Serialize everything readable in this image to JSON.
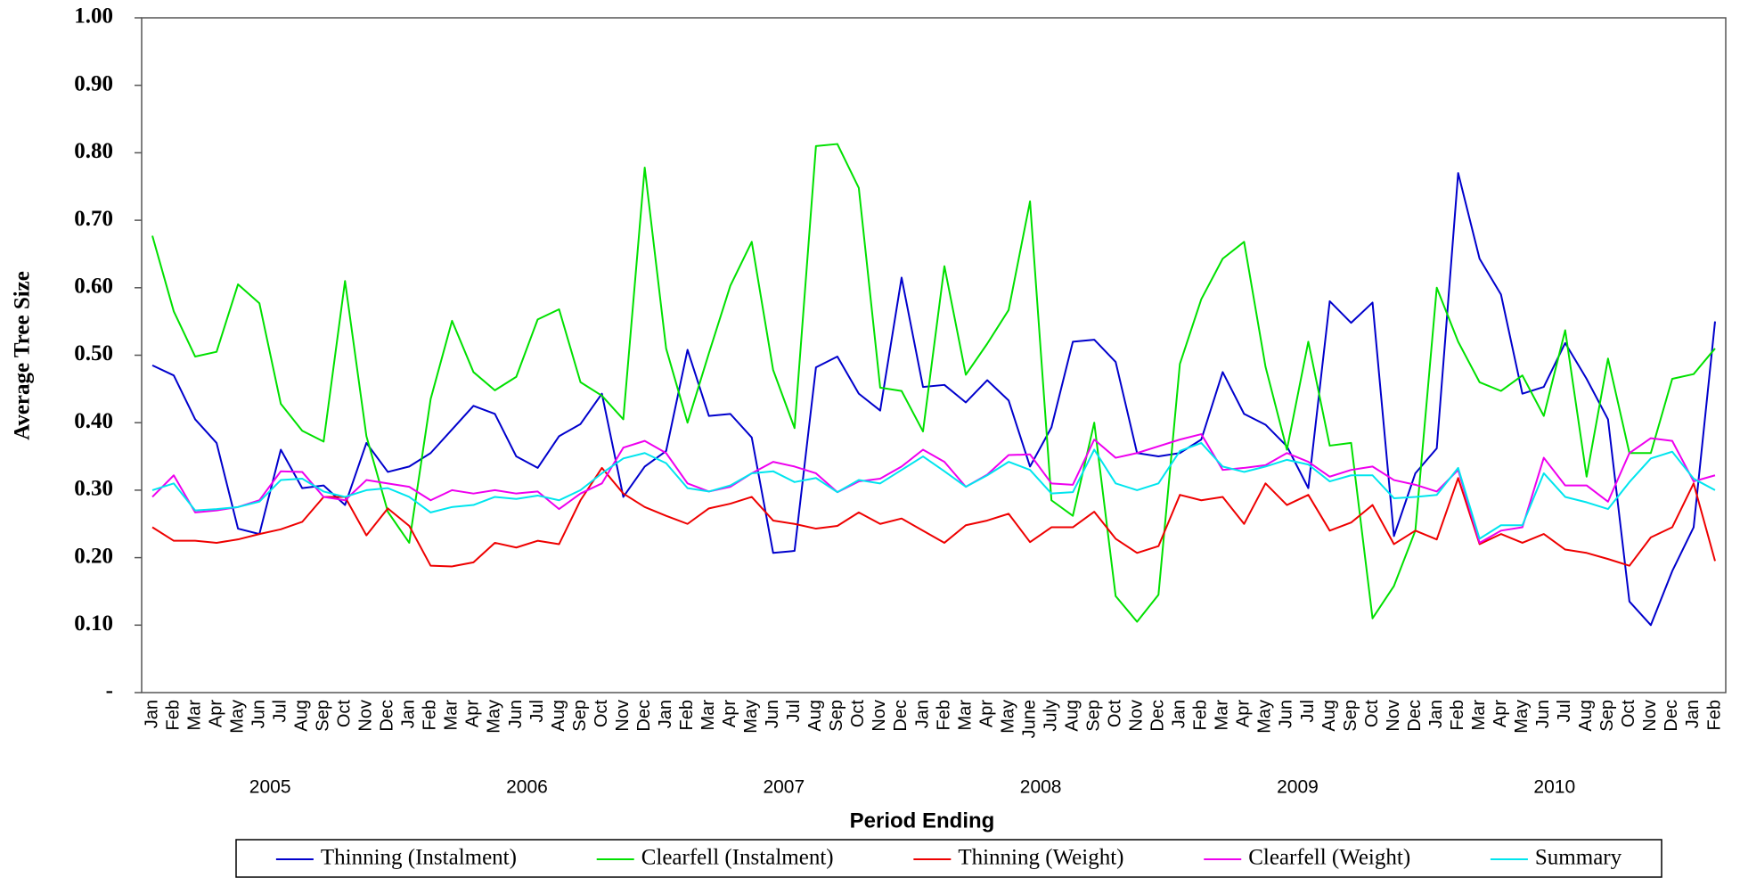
{
  "chart_data": {
    "type": "line",
    "y_label": "Average Tree Size",
    "x_label": "Period Ending",
    "categories": [
      "Jan",
      "Feb",
      "Mar",
      "Apr",
      "May",
      "Jun",
      "Jul",
      "Aug",
      "Sep",
      "Oct",
      "Nov",
      "Dec",
      "Jan",
      "Feb",
      "Mar",
      "Apr",
      "May",
      "Jun",
      "Jul",
      "Aug",
      "Sep",
      "Oct",
      "Nov",
      "Dec",
      "Jan",
      "Feb",
      "Mar",
      "Apr",
      "May",
      "Jun",
      "Jul",
      "Aug",
      "Sep",
      "Oct",
      "Nov",
      "Dec",
      "Jan",
      "Feb",
      "Mar",
      "Apr",
      "May",
      "June",
      "July",
      "Aug",
      "Sep",
      "Oct",
      "Nov",
      "Dec",
      "Jan",
      "Feb",
      "Mar",
      "Apr",
      "May",
      "Jun",
      "Jul",
      "Aug",
      "Sep",
      "Oct",
      "Nov",
      "Dec",
      "Jan",
      "Feb",
      "Mar",
      "Apr",
      "May",
      "Jun",
      "Jul",
      "Aug",
      "Sep",
      "Oct",
      "Nov",
      "Dec",
      "Jan",
      "Feb"
    ],
    "year_labels": [
      "2005",
      "2006",
      "2007",
      "2008",
      "2009",
      "2010"
    ],
    "ylim": [
      0,
      1
    ],
    "yticks": [
      {
        "value": 0,
        "label": "-"
      },
      {
        "value": 0.1,
        "label": "0.10"
      },
      {
        "value": 0.2,
        "label": "0.20"
      },
      {
        "value": 0.3,
        "label": "0.30"
      },
      {
        "value": 0.4,
        "label": "0.40"
      },
      {
        "value": 0.5,
        "label": "0.50"
      },
      {
        "value": 0.6,
        "label": "0.60"
      },
      {
        "value": 0.7,
        "label": "0.70"
      },
      {
        "value": 0.8,
        "label": "0.80"
      },
      {
        "value": 0.9,
        "label": "0.90"
      },
      {
        "value": 1,
        "label": "1.00"
      }
    ],
    "legend": "bottom",
    "series": [
      {
        "name": "Thinning (Instalment)",
        "color": "#0000cc",
        "values": [
          0.485,
          0.47,
          0.405,
          0.37,
          0.243,
          0.235,
          0.36,
          0.303,
          0.307,
          0.278,
          0.37,
          0.327,
          0.335,
          0.355,
          0.39,
          0.425,
          0.413,
          0.35,
          0.333,
          0.38,
          0.398,
          0.443,
          0.29,
          0.335,
          0.358,
          0.508,
          0.41,
          0.413,
          0.378,
          0.207,
          0.21,
          0.482,
          0.498,
          0.443,
          0.418,
          0.615,
          0.453,
          0.456,
          0.43,
          0.463,
          0.433,
          0.335,
          0.393,
          0.52,
          0.523,
          0.49,
          0.355,
          0.35,
          0.355,
          0.375,
          0.475,
          0.413,
          0.397,
          0.365,
          0.303,
          0.58,
          0.548,
          0.578,
          0.232,
          0.325,
          0.362,
          0.77,
          0.643,
          0.59,
          0.443,
          0.453,
          0.518,
          0.465,
          0.405,
          0.135,
          0.1,
          0.18,
          0.245,
          0.55
        ]
      },
      {
        "name": "Clearfell (Instalment)",
        "color": "#00e000",
        "values": [
          0.677,
          0.565,
          0.498,
          0.505,
          0.605,
          0.577,
          0.428,
          0.388,
          0.372,
          0.61,
          0.38,
          0.268,
          0.222,
          0.435,
          0.551,
          0.475,
          0.448,
          0.468,
          0.553,
          0.568,
          0.46,
          0.44,
          0.405,
          0.778,
          0.51,
          0.4,
          0.503,
          0.603,
          0.668,
          0.478,
          0.392,
          0.81,
          0.813,
          0.748,
          0.452,
          0.447,
          0.387,
          0.632,
          0.471,
          0.517,
          0.567,
          0.728,
          0.285,
          0.262,
          0.4,
          0.143,
          0.105,
          0.145,
          0.487,
          0.583,
          0.643,
          0.668,
          0.483,
          0.36,
          0.52,
          0.366,
          0.37,
          0.11,
          0.158,
          0.24,
          0.6,
          0.52,
          0.46,
          0.447,
          0.47,
          0.41,
          0.537,
          0.32,
          0.495,
          0.355,
          0.355,
          0.465,
          0.472,
          0.51
        ]
      },
      {
        "name": "Thinning (Weight)",
        "color": "#ee0000",
        "values": [
          0.245,
          0.225,
          0.225,
          0.222,
          0.227,
          0.235,
          0.242,
          0.253,
          0.29,
          0.29,
          0.233,
          0.273,
          0.247,
          0.188,
          0.187,
          0.193,
          0.222,
          0.215,
          0.225,
          0.22,
          0.285,
          0.333,
          0.295,
          0.275,
          0.262,
          0.25,
          0.273,
          0.28,
          0.29,
          0.255,
          0.25,
          0.243,
          0.247,
          0.267,
          0.25,
          0.258,
          0.24,
          0.222,
          0.248,
          0.255,
          0.265,
          0.223,
          0.245,
          0.245,
          0.268,
          0.228,
          0.207,
          0.217,
          0.293,
          0.285,
          0.29,
          0.25,
          0.31,
          0.278,
          0.293,
          0.24,
          0.252,
          0.278,
          0.22,
          0.24,
          0.227,
          0.318,
          0.22,
          0.235,
          0.222,
          0.235,
          0.212,
          0.207,
          0.198,
          0.188,
          0.23,
          0.245,
          0.31,
          0.195
        ]
      },
      {
        "name": "Clearfell (Weight)",
        "color": "#ee00ee",
        "values": [
          0.29,
          0.322,
          0.267,
          0.27,
          0.275,
          0.285,
          0.328,
          0.327,
          0.29,
          0.285,
          0.315,
          0.31,
          0.305,
          0.285,
          0.3,
          0.295,
          0.3,
          0.295,
          0.298,
          0.272,
          0.295,
          0.31,
          0.363,
          0.373,
          0.355,
          0.31,
          0.298,
          0.305,
          0.325,
          0.342,
          0.335,
          0.325,
          0.297,
          0.313,
          0.317,
          0.335,
          0.36,
          0.342,
          0.305,
          0.323,
          0.352,
          0.353,
          0.31,
          0.308,
          0.375,
          0.348,
          0.355,
          0.365,
          0.375,
          0.383,
          0.33,
          0.333,
          0.337,
          0.355,
          0.342,
          0.32,
          0.33,
          0.335,
          0.315,
          0.308,
          0.298,
          0.33,
          0.222,
          0.24,
          0.245,
          0.348,
          0.307,
          0.307,
          0.283,
          0.355,
          0.377,
          0.373,
          0.313,
          0.322
        ]
      },
      {
        "name": "Summary",
        "color": "#00e5ee",
        "values": [
          0.3,
          0.31,
          0.27,
          0.272,
          0.275,
          0.283,
          0.315,
          0.317,
          0.298,
          0.29,
          0.3,
          0.303,
          0.29,
          0.267,
          0.275,
          0.278,
          0.29,
          0.287,
          0.292,
          0.285,
          0.3,
          0.325,
          0.347,
          0.355,
          0.34,
          0.303,
          0.298,
          0.307,
          0.325,
          0.328,
          0.312,
          0.318,
          0.297,
          0.315,
          0.31,
          0.33,
          0.35,
          0.328,
          0.305,
          0.322,
          0.342,
          0.33,
          0.295,
          0.297,
          0.36,
          0.31,
          0.3,
          0.31,
          0.358,
          0.37,
          0.335,
          0.327,
          0.335,
          0.345,
          0.338,
          0.313,
          0.322,
          0.322,
          0.288,
          0.29,
          0.293,
          0.333,
          0.228,
          0.248,
          0.248,
          0.325,
          0.29,
          0.282,
          0.272,
          0.312,
          0.347,
          0.357,
          0.317,
          0.3
        ]
      }
    ]
  }
}
